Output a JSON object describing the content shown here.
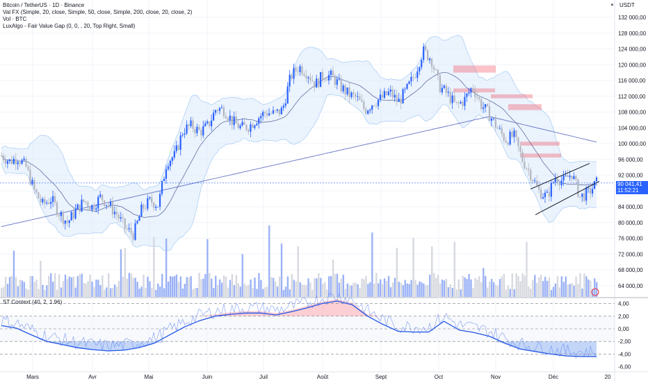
{
  "legend": {
    "title": "Bitcoin / TetherUS · 1D · Binance",
    "line1": "Val FX (Simple, 20, close, Simple, 50, close, Simple, 200, close, 20, close, 2)",
    "line2": "Vol · BTC",
    "line3": "LuxAlgo - Fair Value Gap (0, 0, , 20, Top Right, Small)",
    "osc": "ST Context (40, 2, 1.96)"
  },
  "price_axis": {
    "currency": "USDT",
    "ticks": [
      "132 000,00",
      "128 000,00",
      "124 000,00",
      "120 000,00",
      "116 000,00",
      "112 000,00",
      "108 000,00",
      "104 000,00",
      "100 000,00",
      "96 000,00",
      "92 000,00",
      "88 000,00",
      "84 000,00",
      "80 000,00",
      "76 000,00",
      "72 000,00",
      "68 000,00",
      "64 000,00"
    ],
    "current_price": "90 041,41",
    "countdown": "11:52:21"
  },
  "osc_axis": {
    "ticks": [
      "4,00",
      "2,00",
      "0,00",
      "-2,00",
      "-4,00",
      "-6,00"
    ]
  },
  "time_axis": {
    "labels": [
      "Mars",
      "Avr",
      "Mai",
      "Juin",
      "Juil",
      "Août",
      "Sept",
      "Oct",
      "Nov",
      "Déc",
      "20"
    ]
  },
  "colors": {
    "up": "#2962ff",
    "down": "#b2b5be",
    "bb": "#1e88e5",
    "ma": "#3f51b5",
    "fvg": "#f23645",
    "osc_fill_pos": "#f7a8b0",
    "osc_fill_neg": "#a9c5f5"
  },
  "chart_data": {
    "type": "candlestick",
    "symbol": "BTC/USDT",
    "timeframe": "1D",
    "ylim": [
      62000,
      136000
    ],
    "months": [
      "Mars",
      "Avr",
      "Mai",
      "Juin",
      "Juil",
      "Août",
      "Sept",
      "Oct",
      "Nov",
      "Déc"
    ],
    "close_by_month_start": [
      {
        "month": "Mars",
        "close": 86000
      },
      {
        "month": "Avr",
        "close": 83500
      },
      {
        "month": "Mai",
        "close": 96500
      },
      {
        "month": "Juin",
        "close": 105500
      },
      {
        "month": "Juil",
        "close": 107500
      },
      {
        "month": "Août",
        "close": 114000
      },
      {
        "month": "Sept",
        "close": 109000
      },
      {
        "month": "Oct",
        "close": 114500
      },
      {
        "month": "Nov",
        "close": 110000
      },
      {
        "month": "Déc",
        "close": 86500
      }
    ],
    "close_path": [
      97000,
      95500,
      96500,
      94000,
      88000,
      84500,
      86000,
      82500,
      80000,
      83000,
      85500,
      84000,
      86500,
      84500,
      82000,
      78500,
      77000,
      83500,
      85500,
      84500,
      95500,
      97000,
      103500,
      104500,
      103000,
      104500,
      109000,
      108500,
      105500,
      104000,
      104500,
      106500,
      108000,
      107500,
      108500,
      117000,
      119500,
      118000,
      115000,
      117500,
      117000,
      114500,
      112500,
      111500,
      108500,
      110500,
      111500,
      113000,
      110500,
      113500,
      117500,
      123500,
      121500,
      114500,
      112500,
      109500,
      111000,
      114500,
      110000,
      107500,
      104000,
      101000,
      102000,
      96000,
      92500,
      88000,
      86500,
      91500,
      90500,
      92500,
      86500,
      87500,
      90041
    ],
    "volume_note": "daily volume bars, range up to ~ peak spikes",
    "fvg_zones_usdt": [
      [
        118000,
        119800
      ],
      [
        113000,
        114000
      ],
      [
        111500,
        112500
      ],
      [
        108500,
        110000
      ],
      [
        99500,
        100500
      ],
      [
        96500,
        97500
      ]
    ],
    "trendlines_usdt": [
      {
        "from": [
          86000,
          "Nov"
        ],
        "to": [
          95000,
          "Déc"
        ]
      },
      {
        "from": [
          82000,
          "Nov"
        ],
        "to": [
          92000,
          "Déc"
        ]
      }
    ],
    "oscillator": {
      "name": "ST Context (40, 2, 1.96)",
      "ylim": [
        -6.5,
        4.8
      ],
      "levels": [
        4,
        2,
        0,
        -2,
        -4
      ],
      "values": [
        0.5,
        0.1,
        -1.0,
        -2.0,
        -2.5,
        -3.0,
        -3.3,
        -3.5,
        -3.4,
        -3.0,
        -2.3,
        -1.0,
        0.3,
        1.3,
        2.0,
        2.3,
        2.5,
        2.5,
        2.2,
        2.7,
        3.3,
        4.0,
        4.4,
        3.8,
        2.0,
        0.7,
        -0.4,
        -0.5,
        -0.5,
        1.2,
        -0.2,
        -0.6,
        -1.2,
        -2.3,
        -3.2,
        -3.6,
        -4.0,
        -4.3,
        -4.4,
        -4.4
      ]
    }
  }
}
